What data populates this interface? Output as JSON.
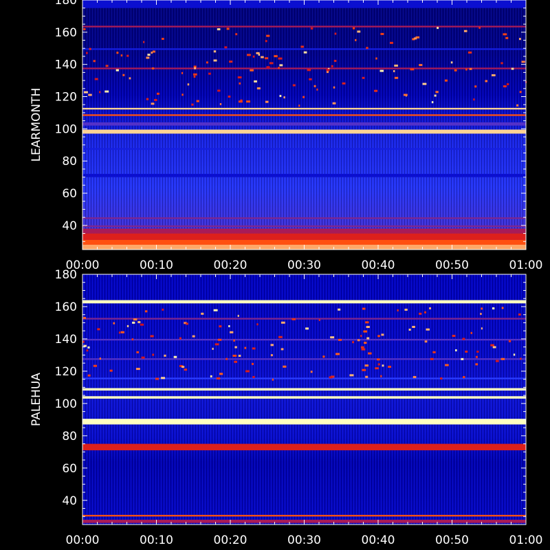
{
  "chart_data": [
    {
      "type": "heatmap",
      "ylabel": "LEARMONTH",
      "xlim": [
        "00:00",
        "01:00"
      ],
      "ylim": [
        25,
        180
      ],
      "x_ticks": [
        "00:00",
        "00:10",
        "00:20",
        "00:30",
        "00:40",
        "00:50",
        "01:00"
      ],
      "y_ticks": [
        40,
        60,
        80,
        100,
        120,
        140,
        160,
        180
      ],
      "colorscale": [
        "#000030",
        "#0000c0",
        "#2a3cff",
        "#d01020",
        "#ff5010",
        "#ffffc0"
      ],
      "bands": [
        {
          "y0": 175,
          "y1": 180,
          "level": 0.25
        },
        {
          "y0": 163,
          "y1": 164,
          "level": 0.55
        },
        {
          "y0": 149,
          "y1": 150,
          "level": 0.3
        },
        {
          "y0": 137,
          "y1": 138,
          "level": 0.55
        },
        {
          "y0": 112,
          "y1": 113,
          "level": 0.95
        },
        {
          "y0": 108,
          "y1": 109,
          "level": 0.8
        },
        {
          "y0": 102,
          "y1": 104,
          "level": 0.45
        },
        {
          "y0": 97,
          "y1": 99.5,
          "level": 0.95
        },
        {
          "y0": 87,
          "y1": 88,
          "level": 0.3
        },
        {
          "y0": 70,
          "y1": 72,
          "level": 0.25
        },
        {
          "y0": 44,
          "y1": 45,
          "level": 0.5
        },
        {
          "y0": 39,
          "y1": 40,
          "level": 0.5
        },
        {
          "y0": 35,
          "y1": 38,
          "level": 0.55
        },
        {
          "y0": 31,
          "y1": 35,
          "level": 0.65
        },
        {
          "y0": 28,
          "y1": 31,
          "level": 0.8
        },
        {
          "y0": 25,
          "y1": 28,
          "level": 0.9
        }
      ]
    },
    {
      "type": "heatmap",
      "ylabel": "PALEHUA",
      "xlim": [
        "00:00",
        "01:00"
      ],
      "ylim": [
        25,
        180
      ],
      "x_ticks": [
        "00:00",
        "00:10",
        "00:20",
        "00:30",
        "00:40",
        "00:50",
        "01:00"
      ],
      "y_ticks": [
        40,
        60,
        80,
        100,
        120,
        140,
        160,
        180
      ],
      "colorscale": [
        "#000030",
        "#0000c0",
        "#2a3cff",
        "#d01020",
        "#ff5010",
        "#ffffc0"
      ],
      "bands": [
        {
          "y0": 162,
          "y1": 164,
          "level": 1.0
        },
        {
          "y0": 152,
          "y1": 153,
          "level": 0.5
        },
        {
          "y0": 139,
          "y1": 140,
          "level": 0.45
        },
        {
          "y0": 127,
          "y1": 128,
          "level": 0.45
        },
        {
          "y0": 115,
          "y1": 116,
          "level": 0.4
        },
        {
          "y0": 108,
          "y1": 109.5,
          "level": 1.0
        },
        {
          "y0": 103,
          "y1": 104.5,
          "level": 1.0
        },
        {
          "y0": 87,
          "y1": 90.5,
          "level": 1.0
        },
        {
          "y0": 71,
          "y1": 75,
          "level": 0.65
        },
        {
          "y0": 30,
          "y1": 31,
          "level": 0.8
        },
        {
          "y0": 26,
          "y1": 28,
          "level": 0.55
        }
      ]
    }
  ]
}
